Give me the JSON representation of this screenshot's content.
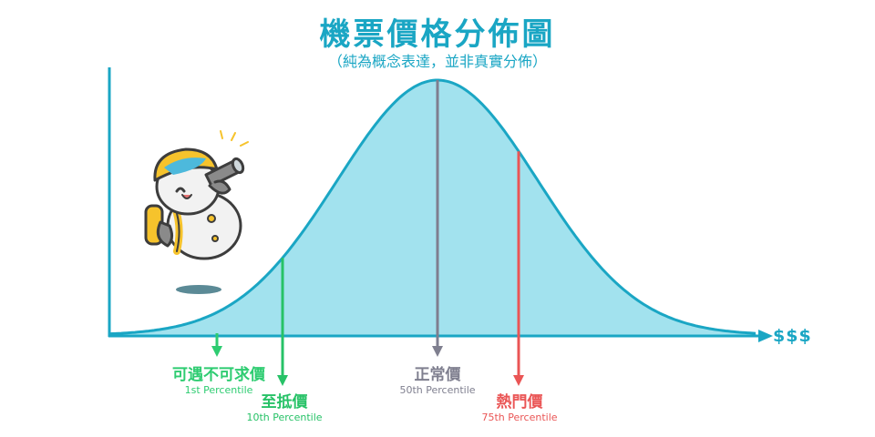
{
  "title": "機票價格分佈圖",
  "subtitle": "（純為概念表達，並非真實分佈）",
  "x_axis_label": "$$$",
  "markers": [
    {
      "id": "p1",
      "label": "可遇不可求價",
      "percentile": "1st Percentile",
      "color": "#2ecc71"
    },
    {
      "id": "p10",
      "label": "至抵價",
      "percentile": "10th Percentile",
      "color": "#27c267"
    },
    {
      "id": "p50",
      "label": "正常價",
      "percentile": "50th Percentile",
      "color": "#7f7f8f"
    },
    {
      "id": "p75",
      "label": "熱門價",
      "percentile": "75th Percentile",
      "color": "#ea5555"
    }
  ],
  "colors": {
    "accent": "#1aa6c4",
    "curve_fill": "#a2e2ee",
    "axis": "#1aa6c4",
    "mascot_body": "#f2f2f2",
    "mascot_outline": "#3d3d3d",
    "mascot_yellow": "#f6c32c",
    "mascot_blue": "#4db9dc"
  },
  "mascot": {
    "icon": "snowman-with-binoculars-icon"
  }
}
